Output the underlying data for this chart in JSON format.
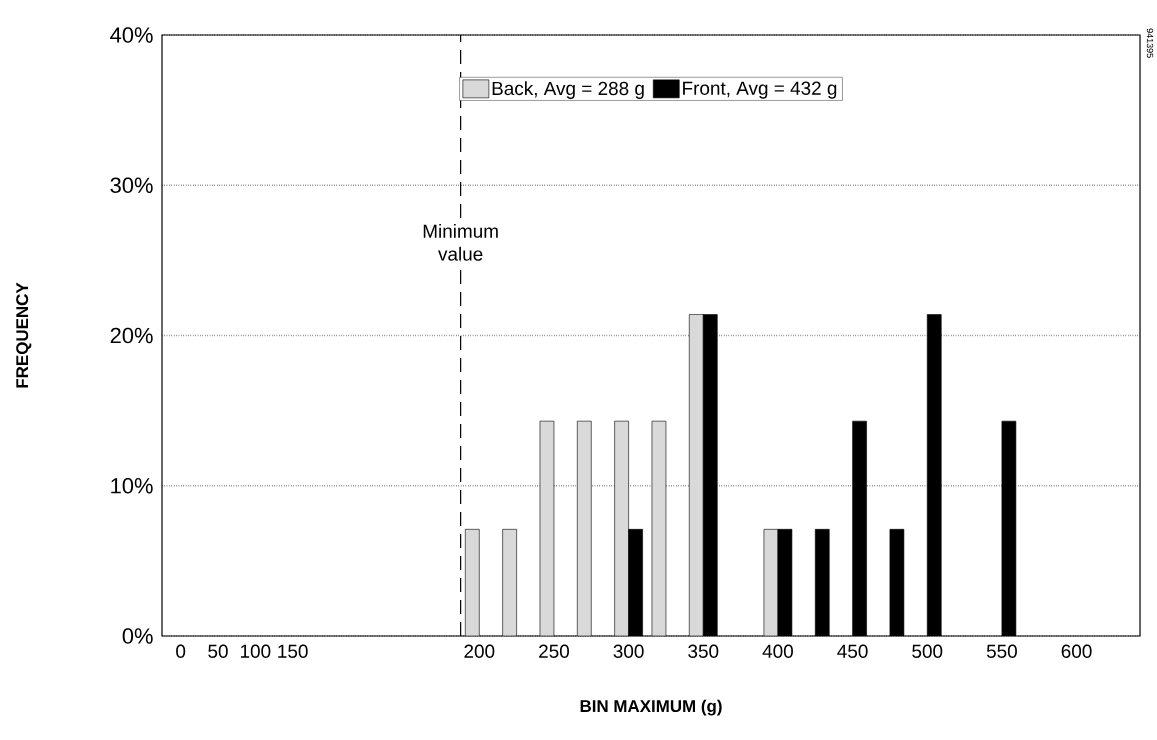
{
  "chart_data": {
    "type": "bar",
    "xlabel": "BIN MAXIMUM  (g)",
    "ylabel": "FREQUENCY",
    "categories": [
      "0",
      "50",
      "100",
      "150",
      null,
      null,
      null,
      null,
      "200",
      null,
      "250",
      null,
      "300",
      null,
      "350",
      null,
      "400",
      null,
      "450",
      null,
      "500",
      null,
      "550",
      null,
      "600",
      null
    ],
    "series": [
      {
        "name": "Back, Avg = 288 g",
        "color": "#d9d9d9",
        "values": [
          null,
          null,
          null,
          null,
          null,
          null,
          null,
          null,
          7.1,
          7.1,
          14.3,
          14.3,
          14.3,
          14.3,
          21.4,
          null,
          7.1,
          null,
          null,
          null,
          null,
          null,
          null,
          null,
          null,
          null
        ]
      },
      {
        "name": "Front, Avg = 432 g",
        "color": "#000000",
        "values": [
          null,
          null,
          null,
          null,
          null,
          null,
          null,
          null,
          null,
          null,
          null,
          null,
          7.1,
          null,
          21.4,
          null,
          7.1,
          7.1,
          14.3,
          7.1,
          21.4,
          null,
          14.3,
          null,
          null,
          null
        ]
      }
    ],
    "ylim": [
      0,
      40
    ],
    "yticks": [
      {
        "value": 0,
        "label": "0%"
      },
      {
        "value": 10,
        "label": "10%"
      },
      {
        "value": 20,
        "label": "20%"
      },
      {
        "value": 30,
        "label": "30%"
      },
      {
        "value": 40,
        "label": "40%"
      }
    ],
    "grid": "y",
    "legend": "top",
    "ref_lines": [
      {
        "axis": "x",
        "value": "200",
        "label": "Minimum value",
        "line_style": "dashed"
      }
    ],
    "annotations": [
      "941395"
    ]
  }
}
